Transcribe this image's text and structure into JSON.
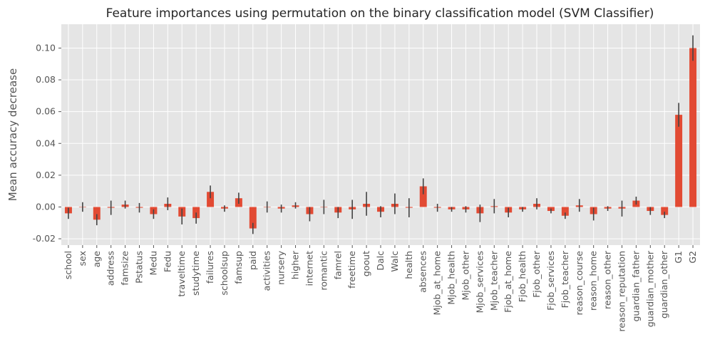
{
  "chart_data": {
    "type": "bar",
    "title": "Feature importances using permutation on the binary classification model (SVM Classifier)",
    "xlabel": "",
    "ylabel": "Mean accuracy decrease",
    "ylim": [
      -0.024,
      0.115
    ],
    "yticks": [
      "-0.02",
      "0.00",
      "0.02",
      "0.04",
      "0.06",
      "0.08",
      "0.10"
    ],
    "ytick_values": [
      -0.02,
      0.0,
      0.02,
      0.04,
      0.06,
      0.08,
      0.1
    ],
    "grid": true,
    "style": "ggplot",
    "bar_color": "#E24A33",
    "error_color": "#444444",
    "categories": [
      "school",
      "sex",
      "age",
      "address",
      "famsize",
      "Pstatus",
      "Medu",
      "Fedu",
      "traveltime",
      "studytime",
      "failures",
      "schoolsup",
      "famsup",
      "paid",
      "activities",
      "nursery",
      "higher",
      "internet",
      "romantic",
      "famrel",
      "freetime",
      "goout",
      "Dalc",
      "Walc",
      "health",
      "absences",
      "Mjob_at_home",
      "Mjob_health",
      "Mjob_other",
      "Mjob_services",
      "Mjob_teacher",
      "Fjob_at_home",
      "Fjob_health",
      "Fjob_other",
      "Fjob_services",
      "Fjob_teacher",
      "reason_course",
      "reason_home",
      "reason_other",
      "reason_reputation",
      "guardian_father",
      "guardian_mother",
      "guardian_other",
      "G1",
      "G2"
    ],
    "values": [
      -0.004,
      0.0,
      -0.008,
      -0.0005,
      0.0015,
      -0.0005,
      -0.0045,
      0.002,
      -0.006,
      -0.007,
      0.0095,
      -0.001,
      0.0055,
      -0.0135,
      0.0,
      -0.001,
      0.001,
      -0.0045,
      0.0,
      -0.0035,
      -0.0015,
      0.002,
      -0.003,
      0.002,
      -0.0005,
      0.013,
      -0.0005,
      -0.0015,
      -0.0015,
      -0.004,
      0.0005,
      -0.0035,
      -0.0015,
      0.002,
      -0.0025,
      -0.0055,
      0.001,
      -0.0045,
      -0.001,
      -0.001,
      0.004,
      -0.0025,
      -0.005,
      0.058,
      0.1
    ],
    "errors": [
      0.0035,
      0.003,
      0.0035,
      0.0045,
      0.0025,
      0.003,
      0.003,
      0.004,
      0.005,
      0.0035,
      0.004,
      0.002,
      0.0035,
      0.0035,
      0.0035,
      0.0025,
      0.002,
      0.0045,
      0.0045,
      0.0035,
      0.006,
      0.0075,
      0.0035,
      0.0065,
      0.006,
      0.005,
      0.0025,
      0.0015,
      0.002,
      0.0055,
      0.0045,
      0.003,
      0.0015,
      0.0035,
      0.0015,
      0.002,
      0.004,
      0.004,
      0.0015,
      0.005,
      0.0025,
      0.0025,
      0.002,
      0.0075,
      0.008
    ]
  }
}
